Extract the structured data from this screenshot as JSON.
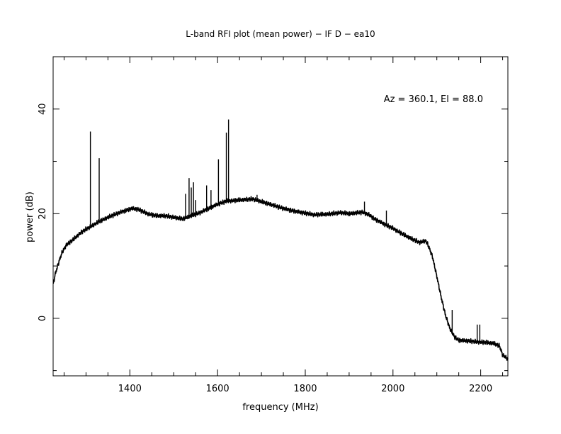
{
  "chart_data": {
    "type": "line",
    "title": "L-band RFI plot (mean power) − IF D − ea10",
    "xlabel": "frequency (MHz)",
    "ylabel": "power (dB)",
    "annotation": "Az = 360.1, El = 88.0",
    "xlim": [
      1225,
      2262
    ],
    "ylim": [
      -11,
      50
    ],
    "xticks": [
      1400,
      1600,
      1800,
      2000,
      2200
    ],
    "yticks": [
      0,
      20,
      40
    ],
    "grid": false,
    "line_color": "#000000",
    "series": [
      {
        "baseline": [
          [
            1225,
            6.5
          ],
          [
            1230,
            8.5
          ],
          [
            1237,
            10.5
          ],
          [
            1245,
            12.5
          ],
          [
            1255,
            14.0
          ],
          [
            1270,
            15.0
          ],
          [
            1290,
            16.5
          ],
          [
            1310,
            17.5
          ],
          [
            1330,
            18.5
          ],
          [
            1350,
            19.3
          ],
          [
            1370,
            20.0
          ],
          [
            1390,
            20.6
          ],
          [
            1405,
            21.0
          ],
          [
            1420,
            20.8
          ],
          [
            1440,
            20.0
          ],
          [
            1460,
            19.6
          ],
          [
            1480,
            19.6
          ],
          [
            1500,
            19.3
          ],
          [
            1520,
            19.0
          ],
          [
            1540,
            19.6
          ],
          [
            1560,
            20.2
          ],
          [
            1580,
            21.0
          ],
          [
            1600,
            21.8
          ],
          [
            1620,
            22.4
          ],
          [
            1650,
            22.6
          ],
          [
            1680,
            22.8
          ],
          [
            1700,
            22.3
          ],
          [
            1720,
            21.8
          ],
          [
            1750,
            21.0
          ],
          [
            1780,
            20.4
          ],
          [
            1800,
            20.1
          ],
          [
            1820,
            19.8
          ],
          [
            1850,
            19.9
          ],
          [
            1880,
            20.2
          ],
          [
            1900,
            20.0
          ],
          [
            1930,
            20.3
          ],
          [
            1945,
            19.8
          ],
          [
            1960,
            18.9
          ],
          [
            1985,
            17.8
          ],
          [
            2000,
            17.2
          ],
          [
            2020,
            16.2
          ],
          [
            2040,
            15.3
          ],
          [
            2060,
            14.5
          ],
          [
            2075,
            14.8
          ],
          [
            2080,
            14.0
          ],
          [
            2090,
            11.8
          ],
          [
            2100,
            8.0
          ],
          [
            2110,
            4.0
          ],
          [
            2120,
            0.5
          ],
          [
            2130,
            -2.0
          ],
          [
            2140,
            -3.5
          ],
          [
            2150,
            -4.2
          ],
          [
            2170,
            -4.3
          ],
          [
            2190,
            -4.5
          ],
          [
            2210,
            -4.6
          ],
          [
            2230,
            -4.8
          ],
          [
            2243,
            -5.3
          ],
          [
            2250,
            -7.0
          ],
          [
            2262,
            -7.8
          ]
        ],
        "spikes": [
          [
            1310,
            35.7
          ],
          [
            1330,
            30.6
          ],
          [
            1527,
            23.8
          ],
          [
            1535,
            26.8
          ],
          [
            1540,
            25.0
          ],
          [
            1545,
            26.0
          ],
          [
            1550,
            22.6
          ],
          [
            1575,
            25.4
          ],
          [
            1585,
            24.5
          ],
          [
            1602,
            30.4
          ],
          [
            1620,
            35.5
          ],
          [
            1625,
            38.0
          ],
          [
            1690,
            23.6
          ],
          [
            1935,
            22.3
          ],
          [
            1985,
            20.6
          ],
          [
            2135,
            1.6
          ],
          [
            2192,
            -1.2
          ],
          [
            2198,
            -1.2
          ]
        ]
      }
    ]
  }
}
